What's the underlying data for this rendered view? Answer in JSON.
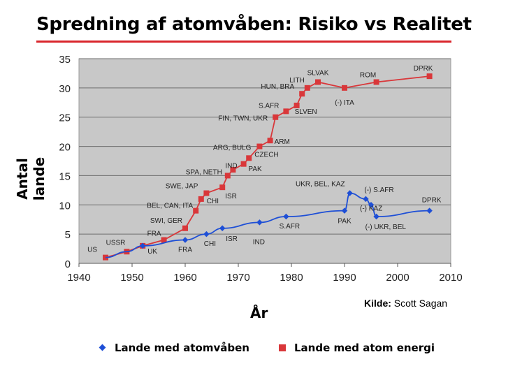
{
  "title": "Spredning af atomvåben: Risiko vs Realitet",
  "source_label": "Kilde:",
  "source_value": "Scott Sagan",
  "legend": {
    "weapons": "Lande med atomvåben",
    "energy": "Lande med atom energi"
  },
  "colors": {
    "weapons": "#1e4fd6",
    "energy": "#d9373a",
    "plot_bg": "#c8c8c8",
    "title_rule": "#d9262c"
  },
  "chart_data": {
    "type": "line",
    "xlabel": "År",
    "ylabel": "Antal lande",
    "xlim": [
      1940,
      2010
    ],
    "ylim": [
      0,
      35
    ],
    "x_ticks": [
      "1940",
      "1950",
      "1960",
      "1970",
      "1980",
      "1990",
      "2000",
      "2010"
    ],
    "y_ticks": [
      "0",
      "5",
      "10",
      "15",
      "20",
      "25",
      "30",
      "35"
    ],
    "grid": "horizontal",
    "legend_position": "bottom",
    "series": [
      {
        "name": "Lande med atomvåben",
        "marker": "diamond",
        "points": [
          {
            "x": 1945,
            "y": 1,
            "label": "US"
          },
          {
            "x": 1949,
            "y": 2,
            "label": "USSR"
          },
          {
            "x": 1952,
            "y": 3,
            "label": "UK"
          },
          {
            "x": 1960,
            "y": 4,
            "label": "FRA"
          },
          {
            "x": 1964,
            "y": 5,
            "label": "CHI"
          },
          {
            "x": 1967,
            "y": 6,
            "label": "ISR"
          },
          {
            "x": 1974,
            "y": 7,
            "label": "IND"
          },
          {
            "x": 1979,
            "y": 8,
            "label": "S.AFR"
          },
          {
            "x": 1990,
            "y": 9,
            "label": "PAK"
          },
          {
            "x": 1991,
            "y": 12,
            "label": "UKR, BEL, KAZ"
          },
          {
            "x": 1994,
            "y": 11,
            "label": "(-) S.AFR"
          },
          {
            "x": 1995,
            "y": 10,
            "label": "(-) KAZ"
          },
          {
            "x": 1996,
            "y": 8,
            "label": "(-) UKR, BEL"
          },
          {
            "x": 2006,
            "y": 9,
            "label": "DPRK"
          }
        ]
      },
      {
        "name": "Lande med atom energi",
        "marker": "square",
        "points": [
          {
            "x": 1945,
            "y": 1,
            "label": "US"
          },
          {
            "x": 1949,
            "y": 2,
            "label": "USSR"
          },
          {
            "x": 1952,
            "y": 3,
            "label": ""
          },
          {
            "x": 1956,
            "y": 4,
            "label": "FRA"
          },
          {
            "x": 1960,
            "y": 6,
            "label": "SWI, GER"
          },
          {
            "x": 1962,
            "y": 9,
            "label": "BEL, CAN, ITA"
          },
          {
            "x": 1963,
            "y": 11,
            "label": "CHI"
          },
          {
            "x": 1964,
            "y": 12,
            "label": "SWE, JAP"
          },
          {
            "x": 1967,
            "y": 13,
            "label": "ISR"
          },
          {
            "x": 1968,
            "y": 15,
            "label": "SPA, NETH"
          },
          {
            "x": 1969,
            "y": 16,
            "label": "PAK"
          },
          {
            "x": 1971,
            "y": 17,
            "label": "IND"
          },
          {
            "x": 1972,
            "y": 18,
            "label": "CZECH"
          },
          {
            "x": 1974,
            "y": 20,
            "label": "ARG, BULG"
          },
          {
            "x": 1976,
            "y": 21,
            "label": "ARM"
          },
          {
            "x": 1977,
            "y": 25,
            "label": "FIN, TWN, UKR"
          },
          {
            "x": 1979,
            "y": 26,
            "label": "S.AFR"
          },
          {
            "x": 1981,
            "y": 27,
            "label": "SLVEN"
          },
          {
            "x": 1982,
            "y": 29,
            "label": "HUN, BRA"
          },
          {
            "x": 1983,
            "y": 30,
            "label": "LITH"
          },
          {
            "x": 1985,
            "y": 31,
            "label": "SLVAK"
          },
          {
            "x": 1990,
            "y": 30,
            "label": "(-) ITA"
          },
          {
            "x": 1996,
            "y": 31,
            "label": "ROM"
          },
          {
            "x": 2006,
            "y": 32,
            "label": "DPRK"
          }
        ]
      }
    ]
  }
}
